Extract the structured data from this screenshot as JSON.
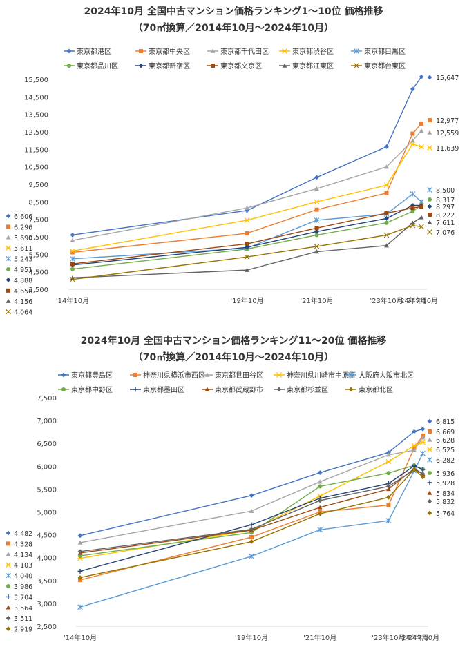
{
  "chart_data": [
    {
      "type": "line",
      "title": "2024年10月 全国中古マンション価格ランキング1～10位 価格推移",
      "subtitle": "（70㎡換算／2014年10月～2024年10月）",
      "categories": [
        "'14年10月",
        "'19年10月",
        "'21年10月",
        "'23年10月",
        "'24年7月",
        "'24年10月"
      ],
      "x_positions": [
        0,
        5,
        7,
        9,
        9.75,
        10
      ],
      "ylim": [
        3500,
        15500
      ],
      "yticks": [
        3500,
        4500,
        5500,
        6500,
        7500,
        8500,
        9500,
        10500,
        11500,
        12500,
        13500,
        14500,
        15500
      ],
      "grid": false,
      "legend": "top",
      "series": [
        {
          "name": "東京都港区",
          "color": "#4472c4",
          "marker": "diamond",
          "values": [
            6606,
            8000,
            9900,
            11650,
            14950,
            15647
          ]
        },
        {
          "name": "東京都中央区",
          "color": "#ed7d31",
          "marker": "square",
          "values": [
            5611,
            6700,
            8050,
            9000,
            12400,
            12977
          ]
        },
        {
          "name": "東京都千代田区",
          "color": "#a5a5a5",
          "marker": "triangle",
          "values": [
            6296,
            8150,
            9250,
            10500,
            12000,
            12559
          ]
        },
        {
          "name": "東京都渋谷区",
          "color": "#ffc000",
          "marker": "star",
          "values": [
            5690,
            7450,
            8500,
            9450,
            11800,
            11639
          ]
        },
        {
          "name": "東京都目黒区",
          "color": "#5b9bd5",
          "marker": "asterisk",
          "values": [
            5243,
            5850,
            7450,
            7800,
            8950,
            8500
          ]
        },
        {
          "name": "東京都品川区",
          "color": "#70ad47",
          "marker": "circle",
          "values": [
            4658,
            5800,
            6600,
            7300,
            7950,
            8317
          ]
        },
        {
          "name": "東京都新宿区",
          "color": "#264478",
          "marker": "diamond",
          "values": [
            4888,
            5900,
            6800,
            7550,
            8300,
            8297
          ]
        },
        {
          "name": "東京都文京区",
          "color": "#9e480e",
          "marker": "square",
          "values": [
            4951,
            6100,
            7000,
            7850,
            8150,
            8222
          ]
        },
        {
          "name": "東京都江東区",
          "color": "#636363",
          "marker": "triangle",
          "values": [
            4156,
            4600,
            5650,
            6000,
            7300,
            7611
          ]
        },
        {
          "name": "東京都台東区",
          "color": "#997300",
          "marker": "x",
          "values": [
            4064,
            5350,
            5950,
            6600,
            7150,
            7076
          ]
        }
      ],
      "left_labels": [
        "6,606",
        "6,296",
        "5,690",
        "5,611",
        "5,243",
        "4,951",
        "4,888",
        "4,658",
        "4,156",
        "4,064"
      ],
      "right_labels": [
        "15,647",
        "12,977",
        "12,559",
        "11,639",
        "8,500",
        "8,317",
        "8,297",
        "8,222",
        "7,611",
        "7,076"
      ]
    },
    {
      "type": "line",
      "title": "2024年10月 全国中古マンション価格ランキング11～20位 価格推移",
      "subtitle": "（70㎡換算／2014年10月～2024年10月）",
      "categories": [
        "'14年10月",
        "'19年10月",
        "'21年10月",
        "'23年10月",
        "'24年7月",
        "'24年10月"
      ],
      "x_positions": [
        0,
        5,
        7,
        9,
        9.75,
        10
      ],
      "ylim": [
        2500,
        7500
      ],
      "yticks": [
        2500,
        3000,
        3500,
        4000,
        4500,
        5000,
        5500,
        6000,
        6500,
        7000,
        7500
      ],
      "grid": false,
      "legend": "top",
      "series": [
        {
          "name": "東京都豊島区",
          "color": "#4472c4",
          "marker": "diamond",
          "values": [
            4482,
            5360,
            5860,
            6300,
            6760,
            6815
          ]
        },
        {
          "name": "神奈川県横浜市西区",
          "color": "#ed7d31",
          "marker": "square",
          "values": [
            3511,
            4450,
            5000,
            5150,
            6400,
            6669
          ]
        },
        {
          "name": "東京都世田谷区",
          "color": "#a5a5a5",
          "marker": "triangle",
          "values": [
            4328,
            5020,
            5660,
            6250,
            6350,
            6628
          ]
        },
        {
          "name": "神奈川県川崎市中原区",
          "color": "#ffc000",
          "marker": "star",
          "values": [
            3986,
            4600,
            5350,
            6100,
            6450,
            6525
          ]
        },
        {
          "name": "大阪府大阪市北区",
          "color": "#5b9bd5",
          "marker": "asterisk",
          "values": [
            2919,
            4030,
            4610,
            4810,
            5900,
            6282
          ]
        },
        {
          "name": "東京都中野区",
          "color": "#70ad47",
          "marker": "circle",
          "values": [
            4040,
            4550,
            5560,
            5850,
            6020,
            5936
          ]
        },
        {
          "name": "東京都墨田区",
          "color": "#264478",
          "marker": "plus",
          "values": [
            3704,
            4720,
            5300,
            5620,
            6010,
            5928
          ]
        },
        {
          "name": "東京都武蔵野市",
          "color": "#9e480e",
          "marker": "triangle",
          "values": [
            4103,
            4600,
            5100,
            5500,
            5950,
            5834
          ]
        },
        {
          "name": "東京都杉並区",
          "color": "#636363",
          "marker": "diamond",
          "values": [
            4134,
            4620,
            5250,
            5560,
            5920,
            5832
          ]
        },
        {
          "name": "東京都北区",
          "color": "#997300",
          "marker": "diamond",
          "values": [
            3564,
            4350,
            4960,
            5320,
            5930,
            5764
          ]
        }
      ],
      "left_labels": [
        "4,482",
        "4,328",
        "4,134",
        "4,103",
        "4,040",
        "3,986",
        "3,704",
        "3,564",
        "3,511",
        "2,919"
      ],
      "right_labels": [
        "6,815",
        "6,669",
        "6,628",
        "6,525",
        "6,282",
        "5,936",
        "5,928",
        "5,834",
        "5,832",
        "5,764"
      ]
    }
  ]
}
